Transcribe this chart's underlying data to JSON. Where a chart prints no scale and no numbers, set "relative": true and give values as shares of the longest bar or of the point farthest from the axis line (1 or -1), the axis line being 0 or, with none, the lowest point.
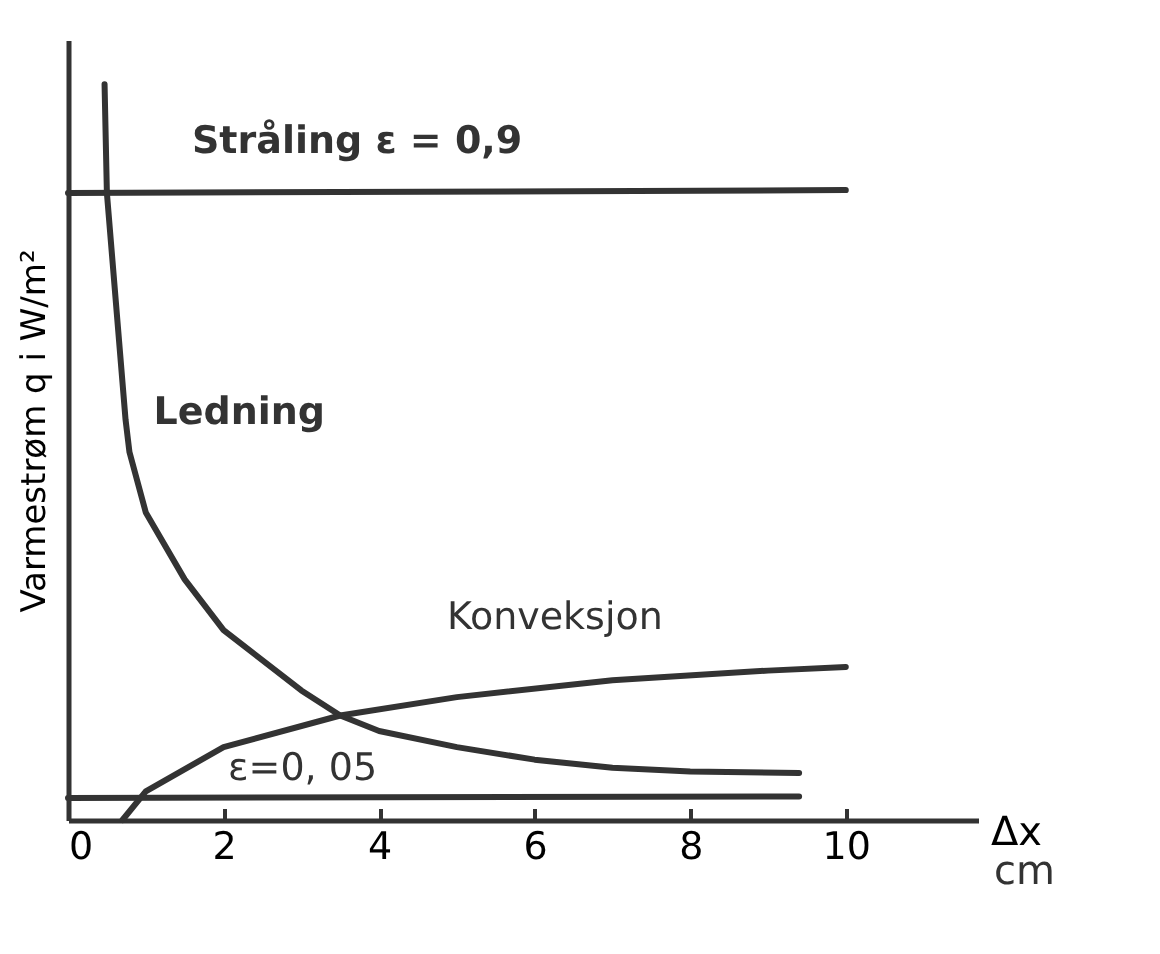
{
  "chart_data": {
    "type": "line",
    "relative": true,
    "xlabel": "Δx",
    "ylabel": "Varmestrøm q i W/m²",
    "annotations": [
      "cm"
    ],
    "xlim": [
      0,
      11.7
    ],
    "xticks": [
      0,
      2,
      4,
      6,
      8,
      10
    ],
    "grid": false,
    "legend": false,
    "marker": "none",
    "line_style": "solid",
    "series": [
      {
        "name": "Stråling ε = 0,9",
        "color": "#333333",
        "x": [
          0,
          10
        ],
        "values": [
          0.852,
          0.856
        ]
      },
      {
        "name": "Ledning",
        "color": "#333333",
        "x": [
          0.47,
          0.5,
          0.74,
          0.79,
          1,
          1.5,
          2,
          3,
          3.5,
          4,
          5,
          6,
          7,
          8,
          9.4
        ],
        "values": [
          1.0,
          0.852,
          0.544,
          0.5,
          0.418,
          0.327,
          0.258,
          0.176,
          0.142,
          0.121,
          0.099,
          0.082,
          0.071,
          0.066,
          0.064
        ]
      },
      {
        "name": "Konveksjon",
        "color": "#333333",
        "x": [
          0.7,
          1,
          2,
          3.5,
          5,
          7,
          9,
          10
        ],
        "values": [
          0,
          0.039,
          0.099,
          0.142,
          0.167,
          0.19,
          0.203,
          0.208
        ]
      },
      {
        "name": "ε=0, 05",
        "color": "#333333",
        "x": [
          0,
          9.4
        ],
        "values": [
          0.03,
          0.032
        ]
      }
    ]
  }
}
